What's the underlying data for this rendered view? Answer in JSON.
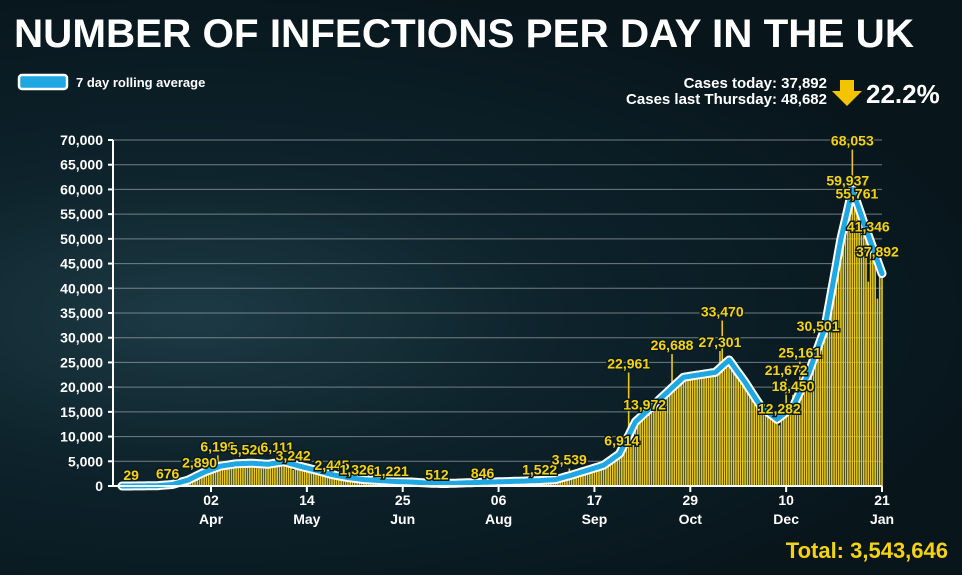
{
  "title": "NUMBER OF INFECTIONS PER DAY IN THE UK",
  "legend": {
    "label": "7 day rolling average",
    "color": "#1ea7e1"
  },
  "summary": {
    "cases_today": "Cases today: 37,892",
    "cases_last_thursday": "Cases last Thursday: 48,682",
    "change": "22.2%",
    "change_direction": "down",
    "arrow_color": "#f5c400"
  },
  "total": "Total:  3,543,646",
  "colors": {
    "bars": "#e8c91a",
    "line": "#1ea7e1",
    "labels": "#f5d312",
    "background": "#0a1a21"
  },
  "chart_data": {
    "type": "bar",
    "title": "NUMBER OF INFECTIONS PER DAY IN THE UK",
    "ylim": [
      0,
      70000
    ],
    "yticks": [
      "0",
      "5,000",
      "10,000",
      "15,000",
      "20,000",
      "25,000",
      "30,000",
      "35,000",
      "40,000",
      "45,000",
      "50,000",
      "55,000",
      "60,000",
      "65,000",
      "70,000"
    ],
    "ytick_values": [
      0,
      5000,
      10000,
      15000,
      20000,
      25000,
      30000,
      35000,
      40000,
      45000,
      50000,
      55000,
      60000,
      65000,
      70000
    ],
    "xlim": [
      "2020-02-23",
      "2021-01-21"
    ],
    "xticks": [
      {
        "date": "2020-04-02",
        "day": "02",
        "month": "Apr"
      },
      {
        "date": "2020-05-14",
        "day": "14",
        "month": "May"
      },
      {
        "date": "2020-06-25",
        "day": "25",
        "month": "Jun"
      },
      {
        "date": "2020-08-06",
        "day": "06",
        "month": "Aug"
      },
      {
        "date": "2020-09-17",
        "day": "17",
        "month": "Sep"
      },
      {
        "date": "2020-10-29",
        "day": "29",
        "month": "Oct"
      },
      {
        "date": "2020-12-10",
        "day": "10",
        "month": "Dec"
      },
      {
        "date": "2021-01-21",
        "day": "21",
        "month": "Jan"
      }
    ],
    "grid": true,
    "legend_position": "top-left",
    "rolling_average": [
      [
        "2020-02-23",
        0
      ],
      [
        "2020-03-02",
        20
      ],
      [
        "2020-03-09",
        50
      ],
      [
        "2020-03-16",
        300
      ],
      [
        "2020-03-23",
        1200
      ],
      [
        "2020-03-30",
        2800
      ],
      [
        "2020-04-06",
        4000
      ],
      [
        "2020-04-13",
        4500
      ],
      [
        "2020-04-20",
        4600
      ],
      [
        "2020-04-27",
        4400
      ],
      [
        "2020-05-04",
        4900
      ],
      [
        "2020-05-11",
        4000
      ],
      [
        "2020-05-18",
        3200
      ],
      [
        "2020-05-25",
        2300
      ],
      [
        "2020-06-01",
        1700
      ],
      [
        "2020-06-08",
        1300
      ],
      [
        "2020-06-15",
        1100
      ],
      [
        "2020-06-22",
        900
      ],
      [
        "2020-06-29",
        800
      ],
      [
        "2020-07-06",
        600
      ],
      [
        "2020-07-13",
        500
      ],
      [
        "2020-07-20",
        600
      ],
      [
        "2020-07-27",
        700
      ],
      [
        "2020-08-03",
        800
      ],
      [
        "2020-08-10",
        900
      ],
      [
        "2020-08-17",
        1000
      ],
      [
        "2020-08-24",
        1100
      ],
      [
        "2020-08-31",
        1300
      ],
      [
        "2020-09-07",
        2200
      ],
      [
        "2020-09-14",
        3200
      ],
      [
        "2020-09-21",
        4200
      ],
      [
        "2020-09-28",
        6500
      ],
      [
        "2020-10-05",
        13000
      ],
      [
        "2020-10-12",
        16000
      ],
      [
        "2020-10-19",
        19000
      ],
      [
        "2020-10-26",
        22000
      ],
      [
        "2020-11-02",
        22500
      ],
      [
        "2020-11-09",
        23000
      ],
      [
        "2020-11-15",
        25500
      ],
      [
        "2020-11-22",
        21000
      ],
      [
        "2020-11-29",
        16000
      ],
      [
        "2020-12-06",
        13500
      ],
      [
        "2020-12-13",
        16000
      ],
      [
        "2020-12-20",
        23000
      ],
      [
        "2020-12-27",
        32000
      ],
      [
        "2021-01-03",
        50000
      ],
      [
        "2021-01-08",
        60000
      ],
      [
        "2021-01-14",
        52000
      ],
      [
        "2021-01-21",
        43000
      ]
    ],
    "labelled_days": [
      {
        "date": "2020-02-27",
        "value": 29,
        "label": "29"
      },
      {
        "date": "2020-03-14",
        "value": 676,
        "label": "676"
      },
      {
        "date": "2020-03-28",
        "value": 2890,
        "label": "2,890"
      },
      {
        "date": "2020-04-05",
        "value": 6199,
        "label": "6,199"
      },
      {
        "date": "2020-04-18",
        "value": 5526,
        "label": "5,526"
      },
      {
        "date": "2020-05-01",
        "value": 6111,
        "label": "6,111"
      },
      {
        "date": "2020-05-08",
        "value": 3242,
        "label": "3,242"
      },
      {
        "date": "2020-05-25",
        "value": 2445,
        "label": "2,445"
      },
      {
        "date": "2020-06-05",
        "value": 1326,
        "label": "1,326"
      },
      {
        "date": "2020-06-20",
        "value": 1221,
        "label": "1,221"
      },
      {
        "date": "2020-07-10",
        "value": 512,
        "label": "512"
      },
      {
        "date": "2020-07-30",
        "value": 846,
        "label": "846"
      },
      {
        "date": "2020-08-24",
        "value": 1522,
        "label": "1,522"
      },
      {
        "date": "2020-09-06",
        "value": 3539,
        "label": "3,539"
      },
      {
        "date": "2020-09-29",
        "value": 6914,
        "label": "6,914"
      },
      {
        "date": "2020-10-02",
        "value": 22961,
        "label": "22,961"
      },
      {
        "date": "2020-10-09",
        "value": 13972,
        "label": "13,972"
      },
      {
        "date": "2020-10-21",
        "value": 26688,
        "label": "26,688"
      },
      {
        "date": "2020-11-12",
        "value": 33470,
        "label": "33,470"
      },
      {
        "date": "2020-11-11",
        "value": 27301,
        "label": "27,301"
      },
      {
        "date": "2020-12-07",
        "value": 12282,
        "label": "12,282"
      },
      {
        "date": "2020-12-13",
        "value": 18450,
        "label": "18,450"
      },
      {
        "date": "2020-12-10",
        "value": 21672,
        "label": "21,672"
      },
      {
        "date": "2020-12-16",
        "value": 25161,
        "label": "25,161"
      },
      {
        "date": "2020-12-24",
        "value": 30501,
        "label": "30,501"
      },
      {
        "date": "2021-01-08",
        "value": 68053,
        "label": "68,053"
      },
      {
        "date": "2021-01-06",
        "value": 59937,
        "label": "59,937"
      },
      {
        "date": "2021-01-10",
        "value": 55761,
        "label": "55,761"
      },
      {
        "date": "2021-01-15",
        "value": 41346,
        "label": "41,346"
      },
      {
        "date": "2021-01-19",
        "value": 37892,
        "label": "37,892"
      }
    ]
  }
}
